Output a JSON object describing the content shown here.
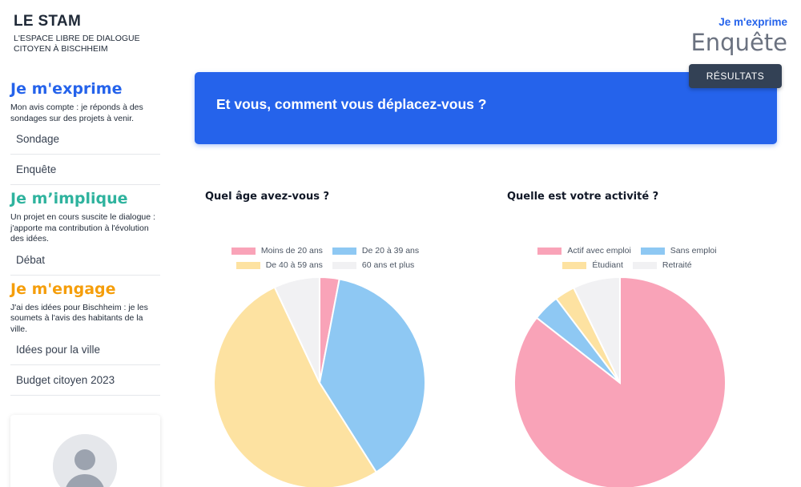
{
  "brand": {
    "title": "LE STAM",
    "subtitle_line1": "L'ESPACE LIBRE DE DIALOGUE",
    "subtitle_line2": "CITOYEN À BISCHHEIM"
  },
  "header": {
    "kicker": "Je m'exprime",
    "title": "Enquête",
    "results_button": "RÉSULTATS"
  },
  "sidebar": {
    "sections": [
      {
        "title": "Je m'exprime",
        "description": "Mon avis compte : je réponds à des sondages sur des projets à venir.",
        "items": [
          "Sondage",
          "Enquête"
        ]
      },
      {
        "title": "Je m’implique",
        "description": "Un projet en cours suscite le dialogue : j'apporte ma contribution à l'évolution des idées.",
        "items": [
          "Débat"
        ]
      },
      {
        "title": "Je m'engage",
        "description": "J'ai des idées pour Bischheim : je les soumets à l'avis des habitants de la ville.",
        "items": [
          "Idées pour la ville",
          "Budget citoyen 2023"
        ]
      }
    ]
  },
  "banner": {
    "question": "Et vous, comment vous déplacez-vous ?"
  },
  "colors": {
    "pink": "#f9a3b8",
    "blue": "#8ec8f3",
    "yellow": "#fde2a1",
    "grey": "#f1f1f3"
  },
  "chart_data": [
    {
      "type": "pie",
      "title": "Quel âge avez-vous ?",
      "categories": [
        "Moins de 20 ans",
        "De 20 à 39 ans",
        "De 40 à 59 ans",
        "60 ans et plus"
      ],
      "values": [
        3,
        38,
        52,
        7
      ],
      "colors": [
        "#f9a3b8",
        "#8ec8f3",
        "#fde2a1",
        "#f1f1f3"
      ],
      "legend": "top"
    },
    {
      "type": "pie",
      "title": "Quelle est votre activité ?",
      "categories": [
        "Actif avec emploi",
        "Sans emploi",
        "Étudiant",
        "Retraité"
      ],
      "values": [
        83,
        4,
        3,
        7
      ],
      "colors": [
        "#f9a3b8",
        "#8ec8f3",
        "#fde2a1",
        "#f1f1f3"
      ],
      "legend": "top"
    }
  ]
}
